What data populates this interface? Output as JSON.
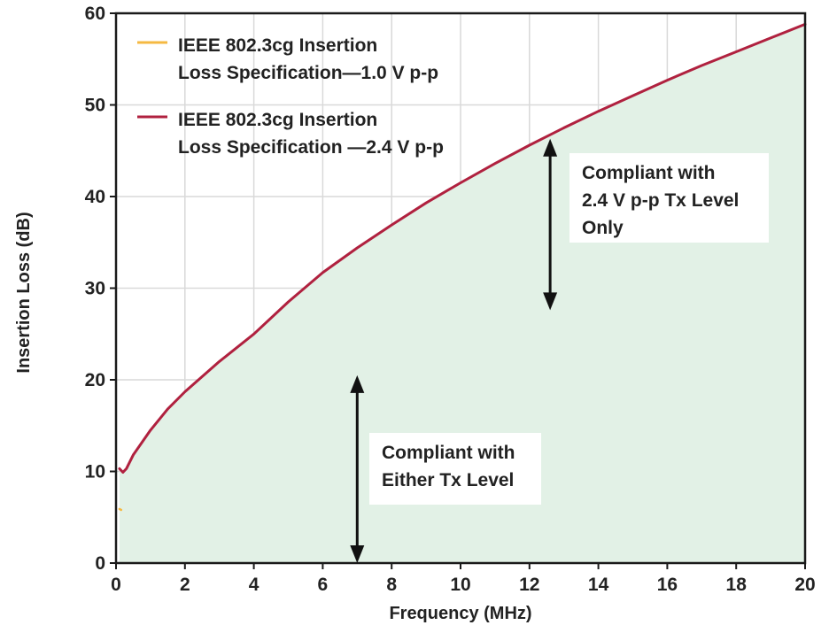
{
  "chart_data": {
    "type": "area",
    "title": "",
    "xlabel": "Frequency (MHz)",
    "ylabel": "Insertion Loss (dB)",
    "xlim": [
      0,
      20
    ],
    "ylim": [
      0,
      60
    ],
    "xticks": [
      0,
      2,
      4,
      6,
      8,
      10,
      12,
      14,
      16,
      18,
      20
    ],
    "yticks": [
      0,
      10,
      20,
      30,
      40,
      50,
      60
    ],
    "grid": true,
    "legend_position": "top-left",
    "series": [
      {
        "name": "IEEE 802.3cg Insertion Loss Specification—1.0 V p-p",
        "color": "#f5b942",
        "x": [
          0.1,
          0.15
        ],
        "y": [
          5.9,
          5.8
        ]
      },
      {
        "name": "IEEE 802.3cg Insertion Loss Specification —2.4 V p-p",
        "color": "#b0213f",
        "x": [
          0.1,
          0.2,
          0.3,
          0.5,
          1,
          1.5,
          2,
          3,
          4,
          5,
          6,
          7,
          8,
          9,
          10,
          11,
          12,
          13,
          14,
          15,
          16,
          17,
          18,
          19,
          20
        ],
        "y": [
          10.3,
          9.9,
          10.3,
          11.8,
          14.5,
          16.8,
          18.7,
          22.0,
          25.0,
          28.5,
          31.7,
          34.4,
          36.9,
          39.3,
          41.5,
          43.6,
          45.6,
          47.5,
          49.3,
          51.0,
          52.7,
          54.3,
          55.8,
          57.3,
          58.8
        ]
      }
    ],
    "fill_color": "#e2f1e6",
    "annotations": [
      {
        "lines": [
          "Compliant with",
          "2.4 V p-p Tx Level",
          "Only"
        ],
        "arrow_x": 12.6,
        "arrow_y": [
          46.3,
          27.6
        ]
      },
      {
        "lines": [
          "Compliant with",
          "Either Tx Level"
        ],
        "arrow_x": 7.0,
        "arrow_y": [
          20.5,
          0
        ]
      }
    ],
    "legend": [
      {
        "lines": [
          "IEEE 802.3cg Insertion",
          "Loss Specification—1.0 V p-p"
        ],
        "color": "#f5b942"
      },
      {
        "lines": [
          "IEEE 802.3cg Insertion",
          "Loss Specification —2.4 V p-p"
        ],
        "color": "#b0213f"
      }
    ]
  }
}
